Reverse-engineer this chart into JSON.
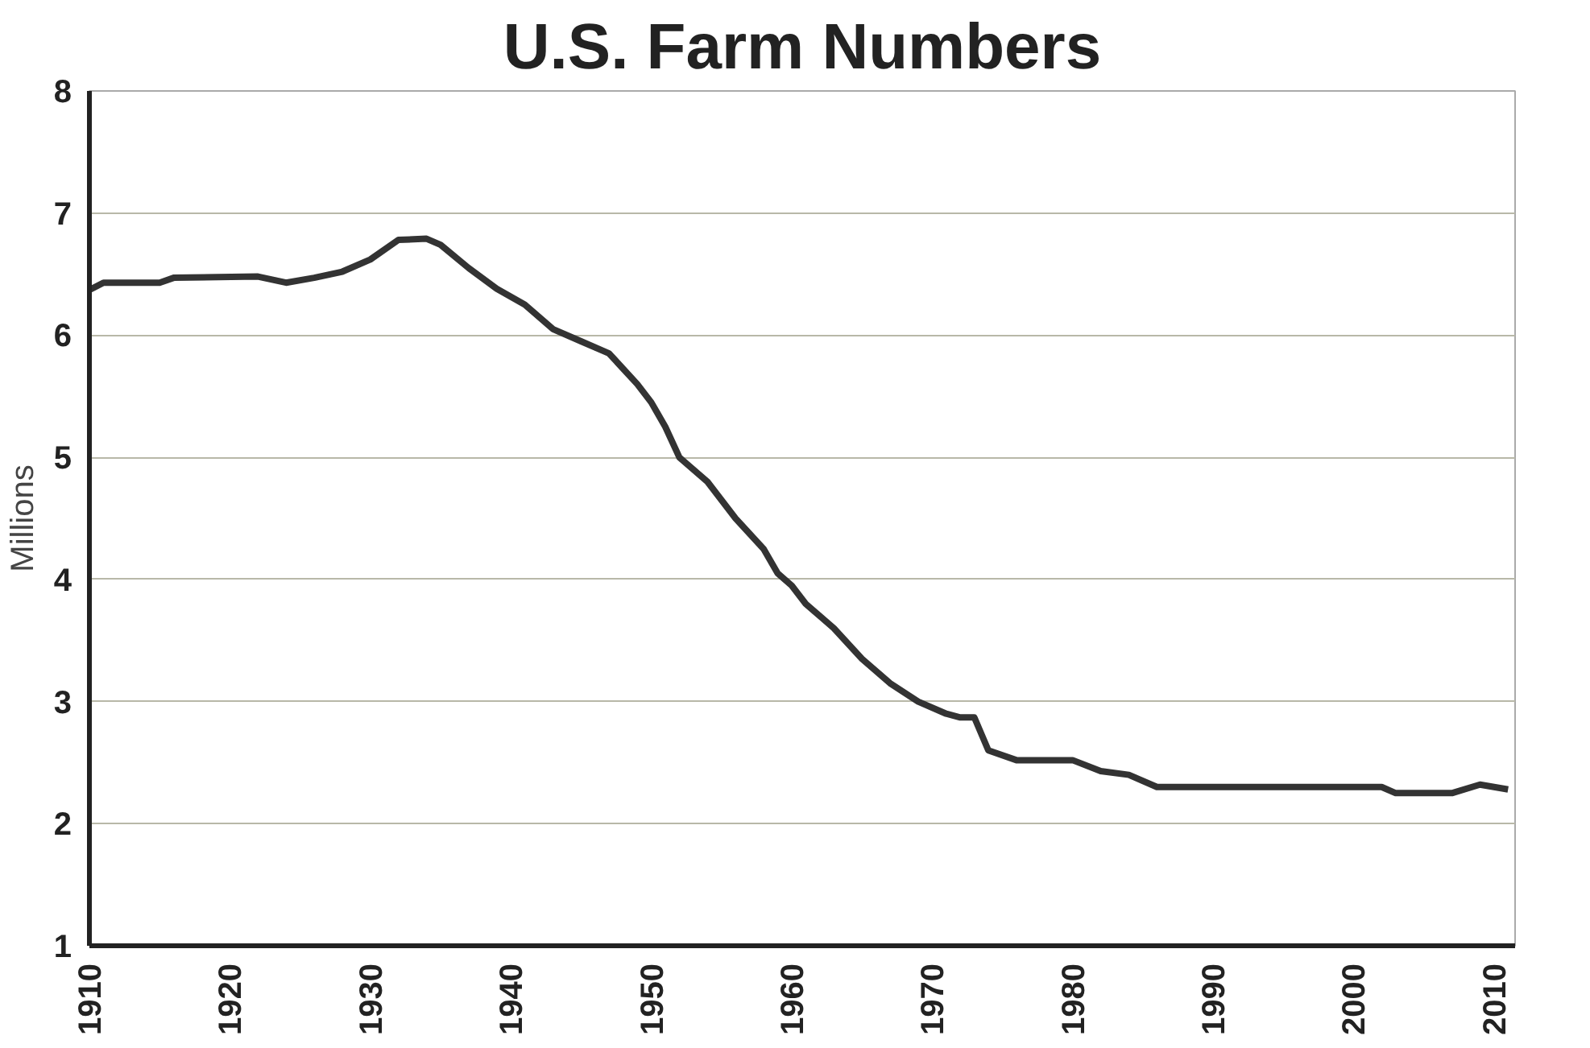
{
  "chart_data": {
    "type": "line",
    "title": "U.S. Farm Numbers",
    "ylabel": "Millions",
    "x": [
      1910,
      1911,
      1915,
      1916,
      1922,
      1924,
      1926,
      1928,
      1930,
      1932,
      1934,
      1935,
      1937,
      1939,
      1941,
      1943,
      1945,
      1947,
      1949,
      1950,
      1951,
      1952,
      1954,
      1956,
      1958,
      1959,
      1960,
      1961,
      1963,
      1965,
      1967,
      1969,
      1971,
      1972,
      1973,
      1974,
      1976,
      1980,
      1982,
      1984,
      1986,
      1990,
      2000,
      2002,
      2003,
      2007,
      2009,
      2011
    ],
    "series": [
      {
        "color": "#333333",
        "values": [
          6.37,
          6.43,
          6.43,
          6.47,
          6.48,
          6.43,
          6.47,
          6.52,
          6.62,
          6.78,
          6.79,
          6.74,
          6.55,
          6.38,
          6.25,
          6.05,
          5.95,
          5.85,
          5.6,
          5.45,
          5.25,
          5.0,
          4.8,
          4.5,
          4.25,
          4.05,
          3.95,
          3.8,
          3.6,
          3.35,
          3.15,
          3.0,
          2.9,
          2.87,
          2.87,
          2.6,
          2.52,
          2.52,
          2.43,
          2.4,
          2.3,
          2.3,
          2.3,
          2.3,
          2.25,
          2.25,
          2.32,
          2.28
        ]
      }
    ],
    "xlim": [
      1910,
      2011.5
    ],
    "xticks": [
      1910,
      1920,
      1930,
      1940,
      1950,
      1960,
      1970,
      1980,
      1990,
      2000,
      2010
    ],
    "ylim": [
      1,
      8
    ],
    "yticks": [
      1,
      2,
      3,
      4,
      5,
      6,
      7,
      8
    ],
    "grid": "y",
    "marker": "none",
    "line_style": "solid"
  }
}
